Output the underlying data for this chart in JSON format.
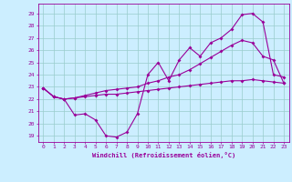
{
  "xlabel": "Windchill (Refroidissement éolien,°C)",
  "bg_color": "#cceeff",
  "grid_color": "#99cccc",
  "line_color": "#990099",
  "x_ticks": [
    0,
    1,
    2,
    3,
    4,
    5,
    6,
    7,
    8,
    9,
    10,
    11,
    12,
    13,
    14,
    15,
    16,
    17,
    18,
    19,
    20,
    21,
    22,
    23
  ],
  "y_ticks": [
    19,
    20,
    21,
    22,
    23,
    24,
    25,
    26,
    27,
    28,
    29
  ],
  "ylim": [
    18.5,
    29.8
  ],
  "xlim": [
    -0.5,
    23.5
  ],
  "line1_x": [
    0,
    1,
    2,
    3,
    4,
    5,
    6,
    7,
    8,
    9,
    10,
    11,
    12,
    13,
    14,
    15,
    16,
    17,
    18,
    19,
    20,
    21,
    22,
    23
  ],
  "line1_y": [
    22.9,
    22.2,
    22.0,
    20.7,
    20.8,
    20.3,
    19.0,
    18.9,
    19.3,
    20.8,
    24.0,
    25.0,
    23.5,
    25.2,
    26.2,
    25.5,
    26.6,
    27.0,
    27.7,
    28.9,
    29.0,
    28.3,
    24.0,
    23.8
  ],
  "line2_x": [
    0,
    1,
    2,
    3,
    4,
    5,
    6,
    7,
    8,
    9,
    10,
    11,
    12,
    13,
    14,
    15,
    16,
    17,
    18,
    19,
    20,
    21,
    22,
    23
  ],
  "line2_y": [
    22.9,
    22.2,
    22.0,
    22.1,
    22.2,
    22.3,
    22.4,
    22.4,
    22.5,
    22.6,
    22.7,
    22.8,
    22.9,
    23.0,
    23.1,
    23.2,
    23.3,
    23.4,
    23.5,
    23.5,
    23.6,
    23.5,
    23.4,
    23.3
  ],
  "line3_x": [
    0,
    1,
    2,
    3,
    4,
    5,
    6,
    7,
    8,
    9,
    10,
    11,
    12,
    13,
    14,
    15,
    16,
    17,
    18,
    19,
    20,
    21,
    22,
    23
  ],
  "line3_y": [
    22.9,
    22.2,
    22.0,
    22.1,
    22.3,
    22.5,
    22.7,
    22.8,
    22.9,
    23.0,
    23.3,
    23.5,
    23.8,
    24.0,
    24.4,
    24.9,
    25.4,
    25.9,
    26.4,
    26.8,
    26.6,
    25.5,
    25.2,
    23.3
  ]
}
